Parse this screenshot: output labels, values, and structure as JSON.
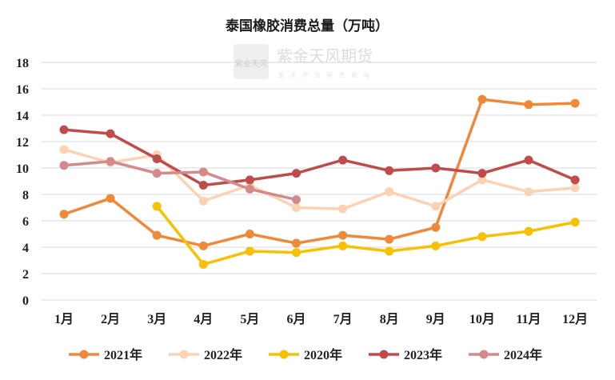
{
  "chart_data": {
    "type": "line",
    "title": "泰国橡胶消费总量（万吨）",
    "categories": [
      "1月",
      "2月",
      "3月",
      "4月",
      "5月",
      "6月",
      "7月",
      "8月",
      "9月",
      "10月",
      "11月",
      "12月"
    ],
    "ylim": [
      0,
      18
    ],
    "yticks": [
      0,
      2,
      4,
      6,
      8,
      10,
      12,
      14,
      16,
      18
    ],
    "grid": "horizontal",
    "legend_position": "bottom",
    "series": [
      {
        "name": "2021年",
        "color": "#f0883a",
        "values": [
          6.5,
          7.7,
          4.9,
          4.1,
          5.0,
          4.3,
          4.9,
          4.6,
          5.5,
          15.2,
          14.8,
          14.9
        ]
      },
      {
        "name": "2022年",
        "color": "#fcd2b4",
        "values": [
          11.4,
          10.4,
          11.0,
          7.5,
          8.7,
          7.0,
          6.9,
          8.2,
          7.1,
          9.1,
          8.2,
          8.5
        ]
      },
      {
        "name": "2020年",
        "color": "#f7c000",
        "values": [
          null,
          null,
          7.1,
          2.7,
          3.7,
          3.6,
          4.1,
          3.7,
          4.1,
          4.8,
          5.2,
          5.9
        ]
      },
      {
        "name": "2023年",
        "color": "#bf4b4a",
        "values": [
          12.9,
          12.6,
          10.7,
          8.7,
          9.1,
          9.6,
          10.6,
          9.8,
          10.0,
          9.6,
          10.6,
          9.1
        ]
      },
      {
        "name": "2024年",
        "color": "#d4898a",
        "values": [
          10.2,
          10.5,
          9.6,
          9.7,
          8.4,
          7.6,
          null,
          null,
          null,
          null,
          null,
          null
        ]
      }
    ]
  },
  "watermark": {
    "logo_text": "紫金天风",
    "brand": "紫金天风期货",
    "slogan": "金 龙 产 业 研 究 驱 动"
  }
}
